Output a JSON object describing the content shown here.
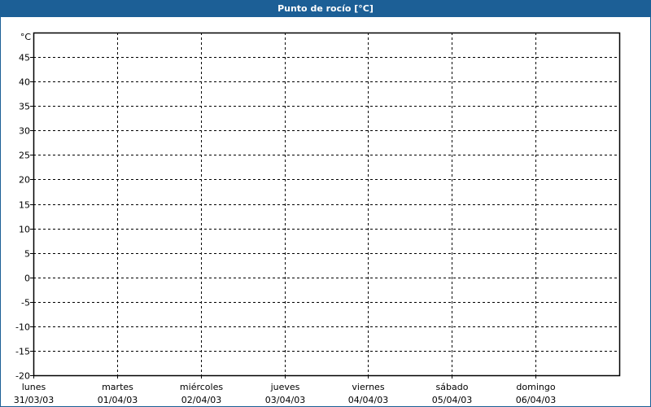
{
  "title": "Punto de rocío [°C]",
  "colors": {
    "titlebar": "#1c5f96",
    "grid": "#000000"
  },
  "chart_data": {
    "type": "line",
    "title": "Punto de rocío [°C]",
    "ylabel": "°C",
    "ylim": [
      -20,
      50
    ],
    "yticks": [
      -20,
      -15,
      -10,
      -5,
      0,
      5,
      10,
      15,
      20,
      25,
      30,
      35,
      40,
      45
    ],
    "xticks": [
      {
        "day": "lunes",
        "date": "31/03/03"
      },
      {
        "day": "martes",
        "date": "01/04/03"
      },
      {
        "day": "miércoles",
        "date": "02/04/03"
      },
      {
        "day": "jueves",
        "date": "03/04/03"
      },
      {
        "day": "viernes",
        "date": "04/04/03"
      },
      {
        "day": "sábado",
        "date": "05/04/03"
      },
      {
        "day": "domingo",
        "date": "06/04/03"
      }
    ],
    "grid": true,
    "grid_style": "dashed",
    "series": []
  }
}
